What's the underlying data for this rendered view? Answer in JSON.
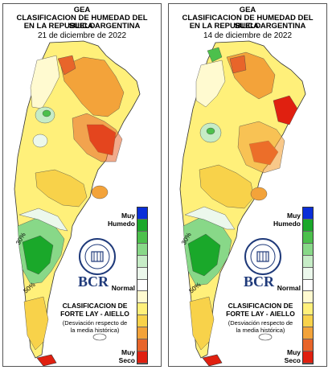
{
  "panels": [
    {
      "title1": "GEA",
      "title2": "CLASIFICACION DE HUMEDAD DEL SUELO",
      "title3": "EN LA REPUBLICA ARGENTINA",
      "date": "21 de diciembre de 2022",
      "contour_labels": [
        "30%",
        "50%"
      ]
    },
    {
      "title1": "GEA",
      "title2": "CLASIFICACION DE HUMEDAD DEL SUELO",
      "title3": "EN LA REPUBLICA ARGENTINA",
      "date": "14 de diciembre de 2022",
      "contour_labels": [
        "30%",
        "50%"
      ]
    }
  ],
  "legend": {
    "label_top_1": "Muy",
    "label_top_2": "Humedo",
    "label_mid": "Normal",
    "label_bottom_1": "Muy",
    "label_bottom_2": "Seco",
    "colors": [
      "#0a2ed8",
      "#1aa82a",
      "#4cc04c",
      "#88d888",
      "#c6ecc6",
      "#ecf8ec",
      "#ffffff",
      "#fffad0",
      "#fff07a",
      "#f8d24a",
      "#f3a33a",
      "#e8652a",
      "#e02010"
    ]
  },
  "branding": {
    "logo_name": "BCR",
    "classification_1": "CLASIFICACION DE",
    "classification_2": "FORTE LAY - AIELLO",
    "description_1": "(Desviación respecto de",
    "description_2": "la media histórica)"
  }
}
